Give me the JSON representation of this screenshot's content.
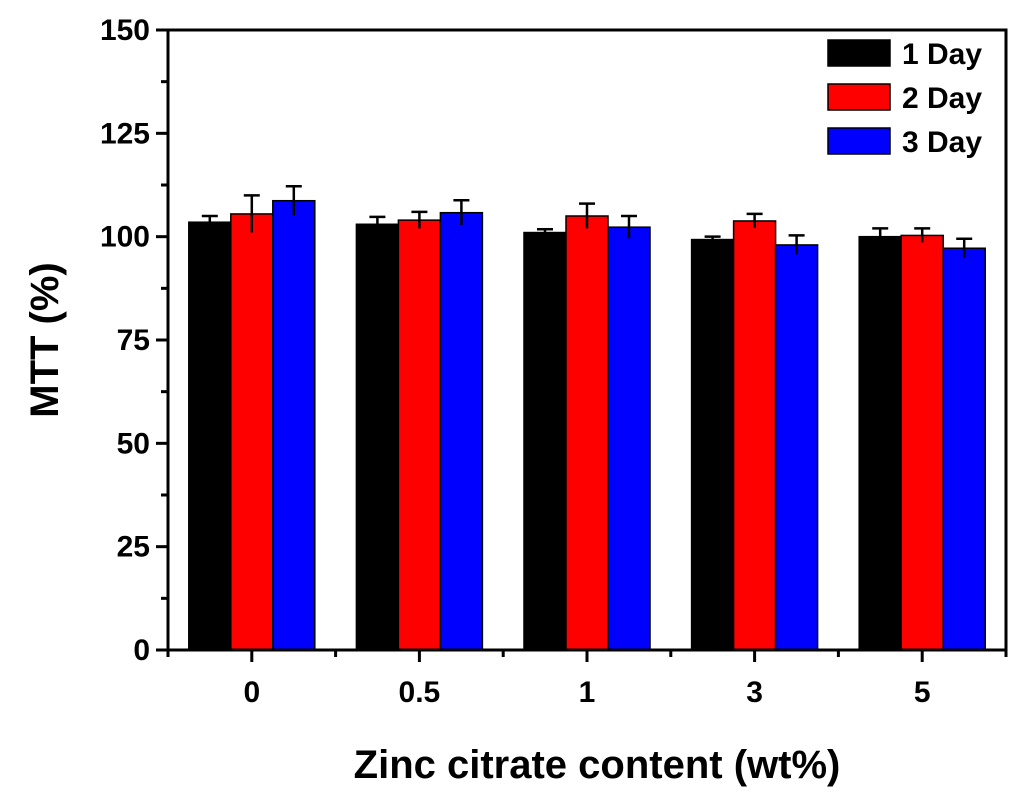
{
  "chart_data": {
    "type": "bar",
    "title": "",
    "xlabel": "Zinc citrate content (wt%)",
    "ylabel": "MTT (%)",
    "ylim": [
      0,
      150
    ],
    "yticks": [
      0,
      25,
      50,
      75,
      100,
      125,
      150
    ],
    "ytick_labels": [
      "0",
      "25",
      "50",
      "75",
      "100",
      "125",
      "150"
    ],
    "categories": [
      "0",
      "0.5",
      "1",
      "3",
      "5"
    ],
    "series": [
      {
        "name": "1 Day",
        "color": "#000000",
        "values": [
          103.5,
          103.0,
          101.0,
          99.3,
          100.0
        ],
        "errors": [
          1.5,
          1.8,
          0.8,
          0.7,
          2.0
        ]
      },
      {
        "name": "2 Day",
        "color": "#ff0000",
        "values": [
          105.5,
          104.0,
          105.0,
          103.8,
          100.3
        ],
        "errors": [
          4.5,
          2.0,
          3.0,
          1.7,
          1.7
        ]
      },
      {
        "name": "3 Day",
        "color": "#0000ff",
        "values": [
          108.7,
          105.8,
          102.3,
          98.0,
          97.2
        ],
        "errors": [
          3.5,
          3.0,
          2.7,
          2.3,
          2.3
        ]
      }
    ],
    "legend_position": "top-right",
    "grid": false
  }
}
